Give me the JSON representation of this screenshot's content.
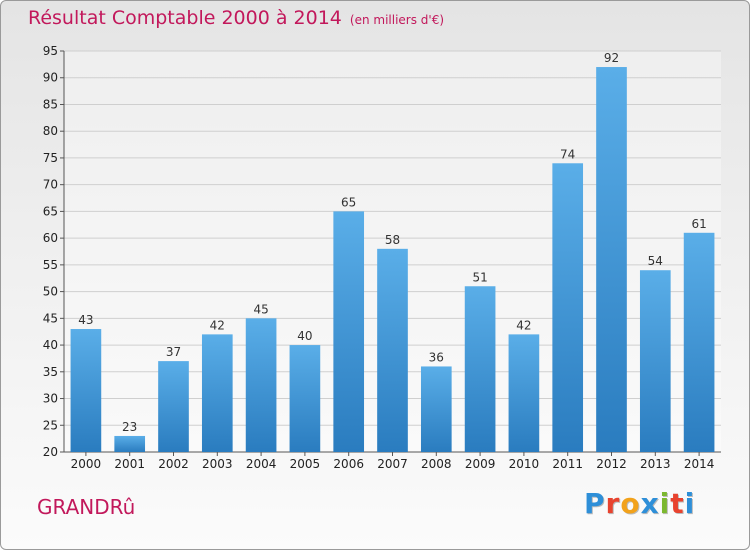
{
  "header": {
    "title": "Résultat Comptable 2000 à 2014",
    "subtitle": "(en milliers d'€)"
  },
  "commune": "GRANDRû",
  "logo": {
    "text": "Proxiti",
    "colors": [
      "#2e8fd8",
      "#e8432f",
      "#f2a21b",
      "#2e8fd8",
      "#7cb82f",
      "#e8432f",
      "#2e8fd8"
    ]
  },
  "colors": {
    "bar_top": "#5aaee8",
    "bar_bottom": "#2a7cbf",
    "accent": "#c2185b"
  },
  "chart_data": {
    "type": "bar",
    "title": "Résultat Comptable 2000 à 2014",
    "xlabel": "",
    "ylabel": "",
    "categories": [
      "2000",
      "2001",
      "2002",
      "2003",
      "2004",
      "2005",
      "2006",
      "2007",
      "2008",
      "2009",
      "2010",
      "2011",
      "2012",
      "2013",
      "2014"
    ],
    "values": [
      43,
      23,
      37,
      42,
      45,
      40,
      65,
      58,
      36,
      51,
      42,
      74,
      92,
      54,
      61
    ],
    "ylim": [
      20,
      95
    ],
    "yticks": [
      20,
      25,
      30,
      35,
      40,
      45,
      50,
      55,
      60,
      65,
      70,
      75,
      80,
      85,
      90,
      95
    ],
    "grid": true
  }
}
